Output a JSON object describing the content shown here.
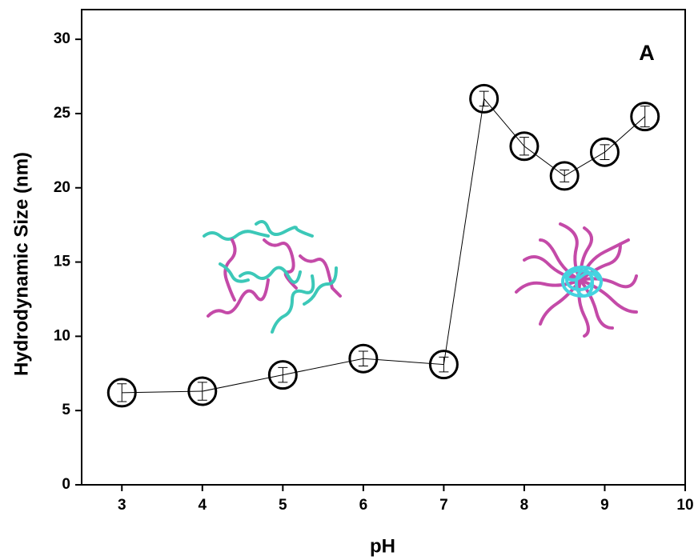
{
  "chart_data": {
    "type": "line",
    "xlabel": "pH",
    "ylabel": "Hydrodynamic Size (nm)",
    "annotation": "A",
    "x": [
      3,
      4,
      5,
      6,
      7,
      7.5,
      8,
      8.5,
      9,
      9.5
    ],
    "values": [
      6.2,
      6.3,
      7.4,
      8.5,
      8.1,
      26.0,
      22.8,
      20.8,
      22.4,
      24.8
    ],
    "errors": [
      0.6,
      0.6,
      0.5,
      0.5,
      0.5,
      0.5,
      0.6,
      0.4,
      0.5,
      0.7
    ],
    "color": "#000000",
    "xlim": [
      2.5,
      10
    ],
    "xticks": [
      3,
      4,
      5,
      6,
      7,
      8,
      9,
      10
    ],
    "ylim": [
      0,
      32
    ],
    "yticks": [
      0,
      5,
      10,
      15,
      20,
      25,
      30
    ]
  }
}
